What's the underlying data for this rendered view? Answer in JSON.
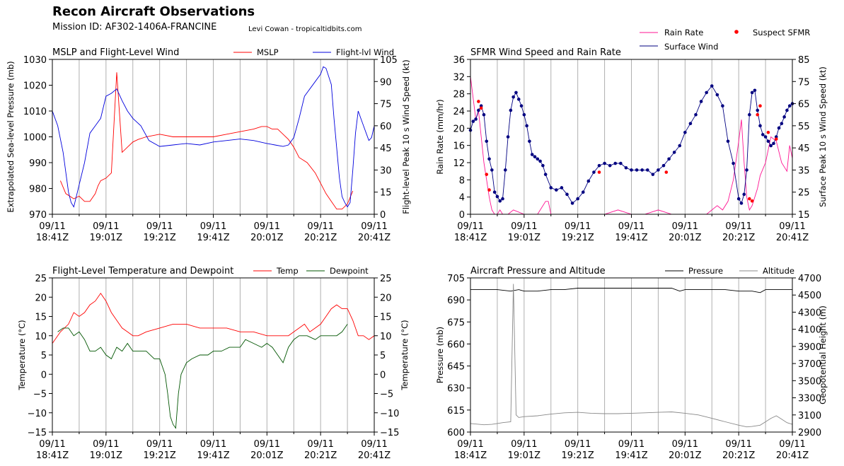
{
  "header": {
    "title": "Recon Aircraft Observations",
    "mission_id": "Mission ID: AF302-1406A-FRANCINE",
    "credit": "Levi Cowan - tropicaltidbits.com"
  },
  "time_axis": {
    "tick_labels_line1": [
      "09/11",
      "09/11",
      "09/11",
      "09/11",
      "09/11",
      "09/11",
      "09/11"
    ],
    "tick_labels_line2": [
      "18:41Z",
      "19:01Z",
      "19:21Z",
      "19:41Z",
      "20:01Z",
      "20:21Z",
      "20:41Z"
    ],
    "range_minutes": [
      0,
      120
    ]
  },
  "chart_data": [
    {
      "id": "mslp_wind",
      "type": "line",
      "title": "MSLP and Flight-Level Wind",
      "ylabel_left": "Extrapolated Sea-level Pressure (mb)",
      "ylabel_right": "Flight-level Peak 10 s Wind Speed (kt)",
      "ylim_left": [
        970,
        1030
      ],
      "ylim_right": [
        0,
        105
      ],
      "yticks_left": [
        970,
        980,
        990,
        1000,
        1010,
        1020,
        1030
      ],
      "yticks_right": [
        0,
        15,
        30,
        45,
        60,
        75,
        90,
        105
      ],
      "legend": [
        "MSLP",
        "Flight-lvl Wind"
      ],
      "series": [
        {
          "name": "MSLP",
          "color": "#ff0000",
          "axis": "left",
          "x": [
            3,
            5,
            8,
            10,
            12,
            14,
            16,
            17,
            18,
            20,
            22,
            24,
            26,
            28,
            30,
            32,
            35,
            40,
            45,
            50,
            55,
            60,
            65,
            70,
            75,
            78,
            80,
            82,
            84,
            86,
            88,
            90,
            92,
            95,
            98,
            100,
            102,
            104,
            106,
            108,
            110,
            112
          ],
          "values": [
            983,
            978,
            976,
            977,
            975,
            975,
            978,
            981,
            983,
            984,
            986,
            1025,
            994,
            996,
            998,
            999,
            1000,
            1001,
            1000,
            1000,
            1000,
            1000,
            1001,
            1002,
            1003,
            1004,
            1004,
            1003,
            1003,
            1001,
            999,
            996,
            992,
            990,
            986,
            982,
            978,
            975,
            972,
            972,
            974,
            979
          ]
        },
        {
          "name": "Flight-lvl Wind",
          "color": "#0000dd",
          "axis": "right",
          "x": [
            0,
            2,
            4,
            6,
            7,
            8,
            10,
            12,
            14,
            16,
            18,
            20,
            22,
            24,
            26,
            28,
            30,
            33,
            36,
            40,
            45,
            50,
            55,
            60,
            65,
            70,
            75,
            80,
            83,
            86,
            88,
            90,
            92,
            94,
            96,
            98,
            100,
            101,
            102,
            104,
            105,
            106,
            107,
            108,
            109,
            110,
            111,
            112,
            113,
            114,
            115,
            116,
            117,
            118,
            119,
            120
          ],
          "values": [
            70,
            60,
            42,
            15,
            8,
            5,
            20,
            35,
            55,
            60,
            65,
            80,
            82,
            85,
            77,
            70,
            65,
            60,
            50,
            46,
            47,
            48,
            47,
            49,
            50,
            51,
            50,
            48,
            47,
            46,
            47,
            52,
            65,
            80,
            85,
            90,
            95,
            100,
            99,
            88,
            65,
            45,
            25,
            12,
            8,
            5,
            8,
            30,
            55,
            70,
            65,
            60,
            55,
            50,
            52,
            60
          ]
        }
      ]
    },
    {
      "id": "sfmr",
      "type": "line",
      "title": "SFMR Wind Speed and Rain Rate",
      "ylabel_left": "Rain Rate (mm/hr)",
      "ylabel_right": "Surface Peak 10 s Wind Speed (kt)",
      "ylim_left": [
        0,
        36
      ],
      "ylim_right": [
        15,
        85
      ],
      "yticks_left": [
        0,
        4,
        8,
        12,
        16,
        20,
        24,
        28,
        32,
        36
      ],
      "yticks_right": [
        15,
        25,
        35,
        45,
        55,
        65,
        75,
        85
      ],
      "legend": [
        "Rain Rate",
        "Surface Wind",
        "Suspect SFMR"
      ],
      "series": [
        {
          "name": "Rain Rate",
          "color": "#ff1493",
          "axis": "left",
          "x": [
            0,
            1,
            2,
            3,
            4,
            5,
            6,
            7,
            8,
            9,
            10,
            11,
            12,
            14,
            16,
            20,
            25,
            28,
            29,
            30,
            32,
            40,
            45,
            50,
            55,
            60,
            65,
            70,
            75,
            80,
            85,
            88,
            90,
            92,
            94,
            96,
            98,
            100,
            101,
            102,
            103,
            104,
            105,
            106,
            107,
            108,
            110,
            112,
            114,
            116,
            118,
            119,
            120
          ],
          "values": [
            32,
            27,
            22,
            24,
            18,
            12,
            8,
            4,
            1,
            0,
            0,
            1,
            0,
            0,
            1,
            0,
            0,
            3,
            3,
            0,
            0,
            0,
            0,
            0,
            1,
            0,
            0,
            1,
            0,
            0,
            0,
            0,
            1,
            2,
            1,
            3,
            8,
            17,
            22,
            12,
            4,
            1,
            2,
            4,
            6,
            9,
            12,
            18,
            17,
            12,
            10,
            16,
            13
          ]
        },
        {
          "name": "Surface Wind",
          "color": "#000080",
          "axis": "right",
          "marker": "dot",
          "x": [
            0,
            1,
            2,
            3,
            4,
            5,
            6,
            7,
            8,
            9,
            10,
            11,
            12,
            13,
            14,
            15,
            16,
            17,
            18,
            19,
            20,
            21,
            22,
            23,
            24,
            25,
            26,
            27,
            28,
            30,
            32,
            34,
            36,
            38,
            40,
            42,
            44,
            46,
            48,
            50,
            52,
            54,
            56,
            58,
            60,
            62,
            64,
            66,
            68,
            70,
            72,
            74,
            76,
            78,
            80,
            82,
            84,
            86,
            88,
            90,
            92,
            94,
            96,
            98,
            100,
            101,
            102,
            103,
            104,
            105,
            106,
            107,
            108,
            109,
            110,
            111,
            112,
            113,
            114,
            115,
            116,
            117,
            118,
            119,
            120
          ],
          "values": [
            53,
            57,
            58,
            62,
            64,
            60,
            48,
            40,
            35,
            25,
            23,
            21,
            22,
            35,
            50,
            62,
            68,
            70,
            67,
            64,
            60,
            55,
            48,
            42,
            41,
            40,
            39,
            37,
            33,
            27,
            26,
            27,
            24,
            20,
            22,
            25,
            30,
            34,
            37,
            38,
            37,
            38,
            38,
            36,
            35,
            35,
            35,
            35,
            33,
            35,
            37,
            40,
            43,
            46,
            52,
            56,
            60,
            66,
            70,
            73,
            69,
            64,
            48,
            38,
            22,
            20,
            24,
            35,
            60,
            70,
            71,
            62,
            55,
            51,
            50,
            48,
            46,
            47,
            50,
            54,
            56,
            59,
            62,
            64,
            65
          ]
        },
        {
          "name": "Suspect SFMR",
          "color": "#ff0000",
          "axis": "right",
          "marker": "dot-only",
          "x": [
            3,
            4,
            6,
            7,
            48,
            73,
            104,
            105,
            107,
            108,
            111,
            114
          ],
          "values": [
            66,
            63,
            33,
            26,
            34,
            34,
            22,
            21,
            60,
            64,
            52,
            49
          ]
        }
      ]
    },
    {
      "id": "temp_dew",
      "type": "line",
      "title": "Flight-Level Temperature and Dewpoint",
      "ylabel_left": "Temperature (°C)",
      "ylabel_right": "Temperature (°C)",
      "ylim_left": [
        -15,
        25
      ],
      "ylim_right": [
        -15,
        25
      ],
      "yticks_left": [
        -15,
        -10,
        -5,
        0,
        5,
        10,
        15,
        20,
        25
      ],
      "yticks_right": [
        -15,
        -10,
        -5,
        0,
        5,
        10,
        15,
        20,
        25
      ],
      "legend": [
        "Temp",
        "Dewpoint"
      ],
      "series": [
        {
          "name": "Temp",
          "color": "#ff0000",
          "axis": "left",
          "x": [
            0,
            3,
            6,
            8,
            10,
            12,
            14,
            16,
            18,
            20,
            22,
            24,
            26,
            28,
            30,
            32,
            35,
            40,
            45,
            50,
            55,
            60,
            65,
            70,
            75,
            80,
            85,
            88,
            90,
            92,
            94,
            96,
            98,
            100,
            102,
            104,
            106,
            108,
            110,
            112,
            114,
            116,
            118,
            120
          ],
          "values": [
            8,
            11,
            13,
            16,
            15,
            16,
            18,
            19,
            21,
            19,
            16,
            14,
            12,
            11,
            10,
            10,
            11,
            12,
            13,
            13,
            12,
            12,
            12,
            11,
            11,
            10,
            10,
            10,
            11,
            12,
            13,
            11,
            12,
            13,
            15,
            17,
            18,
            17,
            17,
            14,
            10,
            10,
            9,
            10
          ]
        },
        {
          "name": "Dewpoint",
          "color": "#005500",
          "axis": "left",
          "x": [
            2,
            4,
            6,
            8,
            10,
            12,
            14,
            16,
            18,
            20,
            22,
            24,
            26,
            28,
            30,
            32,
            35,
            38,
            40,
            42,
            43,
            44,
            45,
            46,
            47,
            48,
            50,
            52,
            55,
            58,
            60,
            63,
            66,
            70,
            72,
            75,
            78,
            80,
            82,
            84,
            86,
            88,
            90,
            92,
            95,
            98,
            100,
            102,
            104,
            106,
            108,
            110
          ],
          "values": [
            11,
            12,
            12,
            10,
            11,
            9,
            6,
            6,
            7,
            5,
            4,
            7,
            6,
            8,
            6,
            6,
            6,
            4,
            4,
            0,
            -5,
            -11,
            -13,
            -14,
            -5,
            0,
            3,
            4,
            5,
            5,
            6,
            6,
            7,
            7,
            9,
            8,
            7,
            8,
            7,
            5,
            3,
            7,
            9,
            10,
            10,
            9,
            10,
            10,
            10,
            10,
            11,
            13
          ]
        }
      ]
    },
    {
      "id": "pressure_alt",
      "type": "line",
      "title": "Aircraft Pressure and Altitude",
      "ylabel_left": "Pressure (mb)",
      "ylabel_right": "Geopotential Height (m)",
      "ylim_left": [
        600,
        705
      ],
      "ylim_right": [
        2900,
        4700
      ],
      "yticks_left": [
        600,
        615,
        630,
        645,
        660,
        675,
        690,
        705
      ],
      "yticks_right": [
        2900,
        3100,
        3300,
        3500,
        3700,
        3900,
        4100,
        4300,
        4500,
        4700
      ],
      "legend": [
        "Pressure",
        "Altitude"
      ],
      "series": [
        {
          "name": "Pressure",
          "color": "#000000",
          "axis": "left",
          "x": [
            0,
            5,
            10,
            15,
            18,
            20,
            25,
            30,
            35,
            40,
            45,
            50,
            55,
            60,
            65,
            70,
            75,
            78,
            80,
            85,
            90,
            95,
            100,
            105,
            108,
            110,
            115,
            120
          ],
          "values": [
            697,
            697,
            697,
            696,
            697,
            696,
            696,
            697,
            697,
            698,
            698,
            698,
            698,
            698,
            698,
            698,
            698,
            696,
            697,
            697,
            697,
            697,
            696,
            696,
            695,
            697,
            697,
            697
          ]
        },
        {
          "name": "Altitude",
          "color": "#888888",
          "axis": "right",
          "x": [
            0,
            5,
            8,
            10,
            12,
            15,
            16,
            17,
            18,
            20,
            25,
            30,
            35,
            40,
            45,
            50,
            55,
            60,
            65,
            70,
            75,
            80,
            85,
            90,
            95,
            100,
            103,
            105,
            108,
            110,
            112,
            114,
            116,
            118,
            120
          ],
          "values": [
            3000,
            2985,
            2990,
            3000,
            3010,
            3020,
            4630,
            3100,
            3070,
            3080,
            3090,
            3110,
            3125,
            3130,
            3120,
            3115,
            3115,
            3120,
            3125,
            3130,
            3135,
            3120,
            3100,
            3060,
            3020,
            2980,
            2960,
            2965,
            2980,
            3020,
            3060,
            3090,
            3050,
            3010,
            2990
          ]
        }
      ]
    }
  ]
}
